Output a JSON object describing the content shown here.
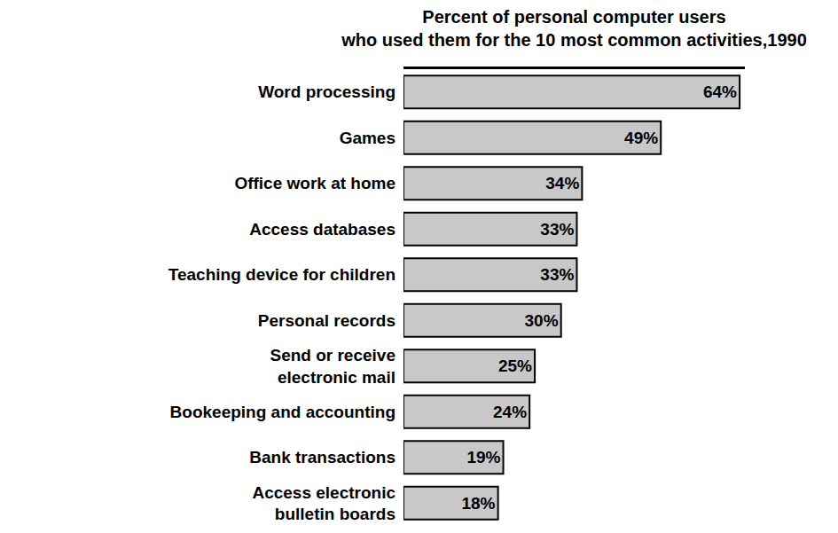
{
  "chart_data": {
    "type": "bar",
    "orientation": "horizontal",
    "title": "Percent of personal computer users\nwho used them for the 10 most common activities,1990",
    "categories": [
      "Word processing",
      "Games",
      "Office work at home",
      "Access databases",
      "Teaching device for children",
      "Personal records",
      "Send or receive\nelectronic mail",
      "Bookeeping and accounting",
      "Bank transactions",
      "Access electronic\nbulletin boards"
    ],
    "values": [
      64,
      49,
      34,
      33,
      33,
      30,
      25,
      24,
      19,
      18
    ],
    "value_labels": [
      "64%",
      "49%",
      "34%",
      "33%",
      "33%",
      "30%",
      "25%",
      "24%",
      "19%",
      "18%"
    ],
    "color": "#c8c8c8",
    "xlim": [
      0,
      65
    ],
    "grid": false,
    "data_labels": true,
    "tick_labels": "y"
  }
}
